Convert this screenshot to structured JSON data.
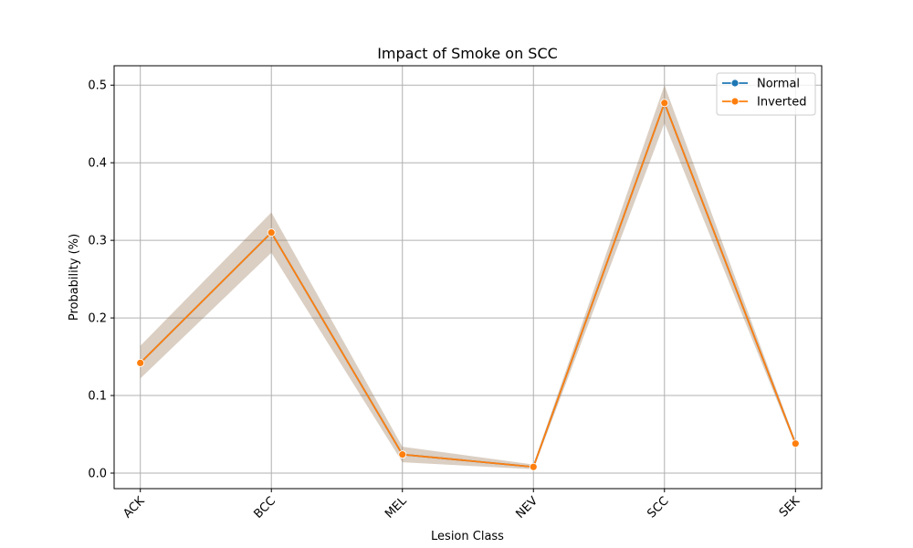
{
  "chart_data": {
    "type": "line",
    "title": "Impact of Smoke on SCC",
    "xlabel": "Lesion Class",
    "ylabel": "Probability (%)",
    "categories": [
      "ACK",
      "BCC",
      "MEL",
      "NEV",
      "SCC",
      "SEK"
    ],
    "ylim": [
      -0.02,
      0.525
    ],
    "yticks": [
      0.0,
      0.1,
      0.2,
      0.3,
      0.4,
      0.5
    ],
    "ytick_labels": [
      "0.0",
      "0.1",
      "0.2",
      "0.3",
      "0.4",
      "0.5"
    ],
    "grid": true,
    "legend_position": "top-right",
    "series": [
      {
        "name": "Normal",
        "color": "#1f77b4",
        "values": [
          0.142,
          0.31,
          0.024,
          0.008,
          0.477,
          0.038
        ],
        "ci_low": [
          0.122,
          0.284,
          0.014,
          0.005,
          0.451,
          0.035
        ],
        "ci_high": [
          0.164,
          0.336,
          0.034,
          0.011,
          0.5,
          0.041
        ]
      },
      {
        "name": "Inverted",
        "color": "#ff7f0e",
        "values": [
          0.142,
          0.31,
          0.024,
          0.008,
          0.477,
          0.038
        ],
        "ci_low": [
          0.122,
          0.284,
          0.014,
          0.005,
          0.451,
          0.035
        ],
        "ci_high": [
          0.164,
          0.336,
          0.034,
          0.011,
          0.5,
          0.041
        ]
      }
    ]
  }
}
